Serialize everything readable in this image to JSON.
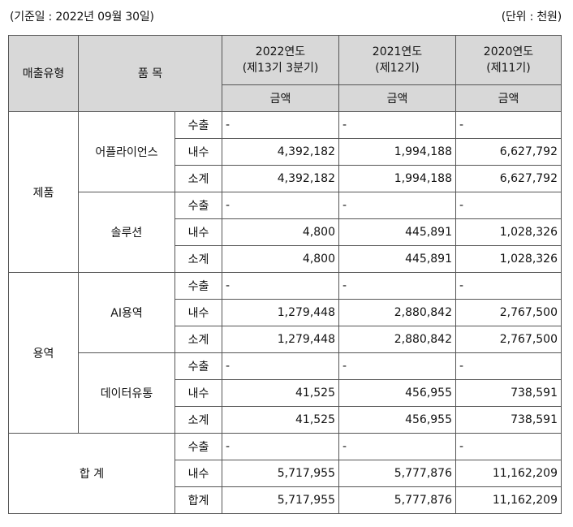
{
  "caption": {
    "left": "(기준일 : 2022년 09월 30일)",
    "right": "(단위 : 천원)"
  },
  "header": {
    "sales_type": "매출유형",
    "item": "품 목",
    "years": [
      {
        "year": "2022연도",
        "period": "(제13기 3분기)",
        "sub": "금액"
      },
      {
        "year": "2021연도",
        "period": "(제12기)",
        "sub": "금액"
      },
      {
        "year": "2020연도",
        "period": "(제11기)",
        "sub": "금액"
      }
    ]
  },
  "groups": [
    {
      "type": "제품",
      "items": [
        {
          "name": "어플라이언스",
          "rows": [
            {
              "kind": "수출",
              "v": [
                "-",
                "-",
                "-"
              ]
            },
            {
              "kind": "내수",
              "v": [
                "4,392,182",
                "1,994,188",
                "6,627,792"
              ]
            },
            {
              "kind": "소계",
              "v": [
                "4,392,182",
                "1,994,188",
                "6,627,792"
              ]
            }
          ]
        },
        {
          "name": "솔루션",
          "rows": [
            {
              "kind": "수출",
              "v": [
                "-",
                "-",
                "-"
              ]
            },
            {
              "kind": "내수",
              "v": [
                "4,800",
                "445,891",
                "1,028,326"
              ]
            },
            {
              "kind": "소계",
              "v": [
                "4,800",
                "445,891",
                "1,028,326"
              ]
            }
          ]
        }
      ]
    },
    {
      "type": "용역",
      "items": [
        {
          "name": "AI용역",
          "rows": [
            {
              "kind": "수출",
              "v": [
                "-",
                "-",
                "-"
              ]
            },
            {
              "kind": "내수",
              "v": [
                "1,279,448",
                "2,880,842",
                "2,767,500"
              ]
            },
            {
              "kind": "소계",
              "v": [
                "1,279,448",
                "2,880,842",
                "2,767,500"
              ]
            }
          ]
        },
        {
          "name": "데이터유통",
          "rows": [
            {
              "kind": "수출",
              "v": [
                "-",
                "-",
                "-"
              ]
            },
            {
              "kind": "내수",
              "v": [
                "41,525",
                "456,955",
                "738,591"
              ]
            },
            {
              "kind": "소계",
              "v": [
                "41,525",
                "456,955",
                "738,591"
              ]
            }
          ]
        }
      ]
    }
  ],
  "total": {
    "label": "합 계",
    "rows": [
      {
        "kind": "수출",
        "v": [
          "-",
          "-",
          "-"
        ]
      },
      {
        "kind": "내수",
        "v": [
          "5,717,955",
          "5,777,876",
          "11,162,209"
        ]
      },
      {
        "kind": "합계",
        "v": [
          "5,717,955",
          "5,777,876",
          "11,162,209"
        ]
      }
    ]
  }
}
